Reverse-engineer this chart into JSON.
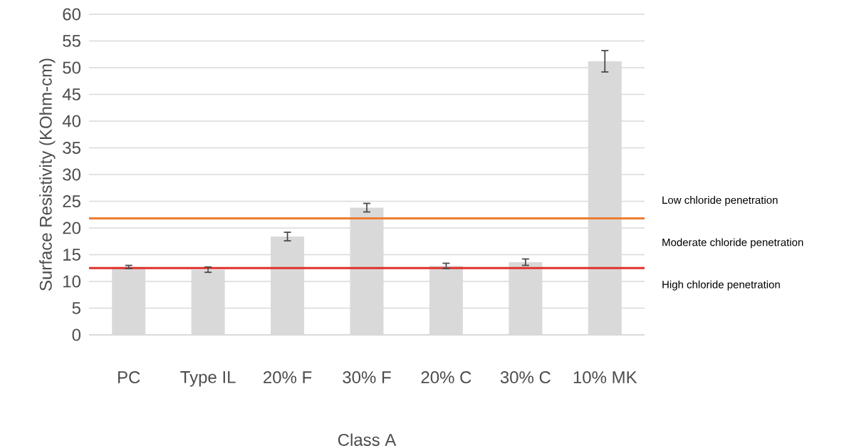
{
  "chart_data": {
    "type": "bar",
    "xlabel": "Class A",
    "ylabel": "Surface Resistivity (KOhm-cm)",
    "categories": [
      "PC",
      "Type IL",
      "20% F",
      "30% F",
      "20% C",
      "30% C",
      "10% MK"
    ],
    "values": [
      12.7,
      12.2,
      18.4,
      23.8,
      12.9,
      13.6,
      51.2
    ],
    "errors": [
      0.3,
      0.5,
      0.8,
      0.8,
      0.5,
      0.6,
      2
    ],
    "color": "#d9d9d9",
    "ylim": [
      0,
      60
    ],
    "yticks": [
      0,
      5,
      10,
      15,
      20,
      25,
      30,
      35,
      40,
      45,
      50,
      55,
      60
    ],
    "grid": "y",
    "ref_lines": [
      {
        "axis": "y",
        "value": 21.8,
        "color": "#ed7d31"
      },
      {
        "axis": "y",
        "value": 12.5,
        "color": "#e0302a"
      }
    ],
    "annotations": [
      "Low chloride penetration",
      "Moderate chloride penetration",
      "High chloride penetration"
    ]
  }
}
